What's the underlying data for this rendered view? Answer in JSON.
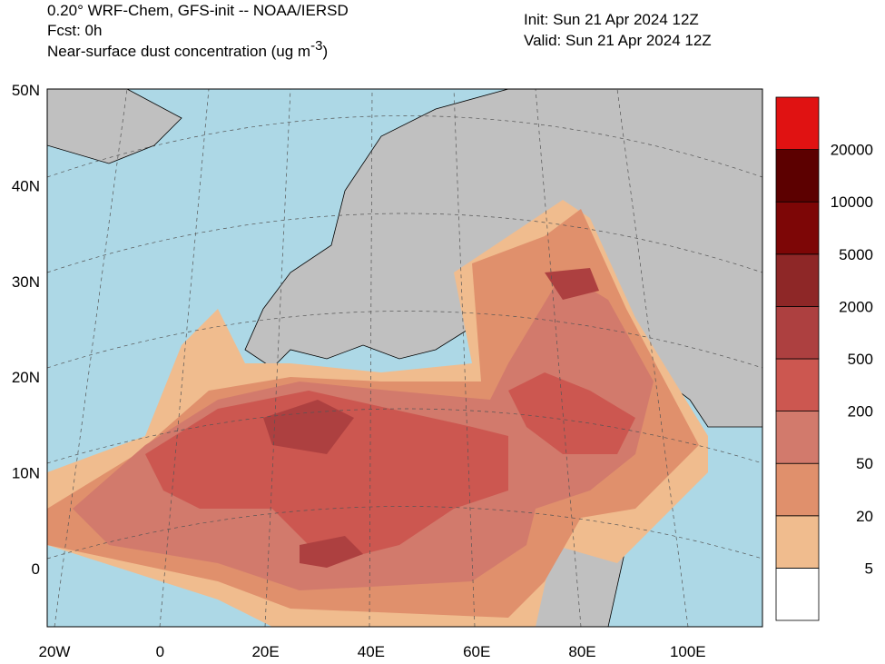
{
  "header": {
    "title": "0.20° WRF-Chem, GFS-init -- NOAA/IERSD",
    "forecast": "Fcst: 0h",
    "field": "Near-surface dust concentration (ug m",
    "field_exp": "-3",
    "field_end": ")",
    "init": "Init: Sun 21 Apr 2024  12Z",
    "valid": "Valid: Sun 21 Apr 2024  12Z"
  },
  "map": {
    "lat_labels": [
      "50N",
      "40N",
      "30N",
      "20N",
      "10N",
      "0"
    ],
    "lon_labels": [
      "20W",
      "0",
      "20E",
      "40E",
      "60E",
      "80E",
      "100E"
    ]
  },
  "colorbar": {
    "levels": [
      5,
      20,
      50,
      200,
      500,
      2000,
      5000,
      10000,
      20000
    ],
    "colors": [
      "#ffffff",
      "#f0bc8e",
      "#e0906c",
      "#d27a6c",
      "#cc5750",
      "#ad4040",
      "#8e2727",
      "#7d0606",
      "#5c0000",
      "#e01212"
    ]
  }
}
